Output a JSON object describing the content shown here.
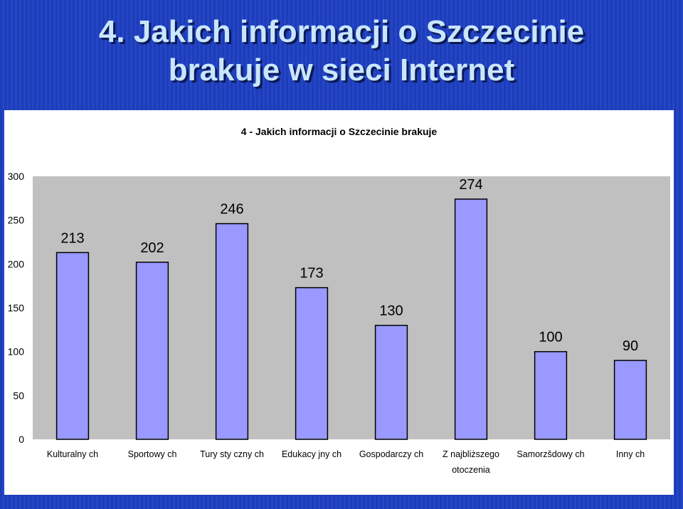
{
  "slide": {
    "title_line1": "4. Jakich informacji o Szczecinie",
    "title_line2": "brakuje w sieci Internet"
  },
  "chart_data": {
    "type": "bar",
    "title": "4 - Jakich informacji o Szczecinie brakuje",
    "categories": [
      "Kulturalnych",
      "Sportowych",
      "Turystycznych",
      "Edukacyjnych",
      "Gospodarczych",
      "Z najbliższego otoczenia",
      "Samorządowych",
      "Innych"
    ],
    "category_display": [
      [
        "Kulturalny ch"
      ],
      [
        "Sportowy ch"
      ],
      [
        "Tury sty czny ch"
      ],
      [
        "Edukacy jny ch"
      ],
      [
        "Gospodarczy ch"
      ],
      [
        "Z  najbliższego",
        "otoczenia"
      ],
      [
        "Samorzšdowy ch"
      ],
      [
        "Inny ch"
      ]
    ],
    "values": [
      213,
      202,
      246,
      173,
      130,
      274,
      100,
      90
    ],
    "ylim": [
      0,
      300
    ],
    "yticks": [
      0,
      50,
      100,
      150,
      200,
      250,
      300
    ],
    "grid": false,
    "colors": {
      "bar": "#9999ff",
      "plot_bg": "#c0c0c0",
      "bar_stroke": "#000000"
    }
  }
}
